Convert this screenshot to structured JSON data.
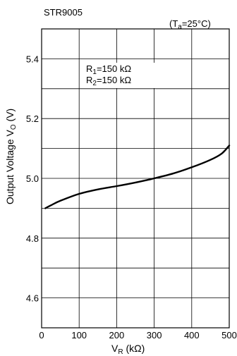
{
  "chart_data": {
    "type": "line",
    "title": "STR9005",
    "condition": {
      "prefix": "(T",
      "sub": "a",
      "suffix": "=25°C)"
    },
    "annotations": [
      {
        "parts": [
          "R",
          "1",
          "=150 kΩ"
        ]
      },
      {
        "parts": [
          "R",
          "2",
          "=150 kΩ"
        ]
      }
    ],
    "xlabel": {
      "main": "V",
      "sub": "R",
      "unit": " (kΩ)"
    },
    "ylabel": {
      "main": "Output Voltage V",
      "sub": "O",
      "unit": " (V)"
    },
    "xlim": [
      0,
      500
    ],
    "ylim": [
      4.5,
      5.5
    ],
    "xticks": [
      0,
      100,
      200,
      300,
      400,
      500
    ],
    "xtick_labels": [
      "0",
      "100",
      "200",
      "300",
      "400",
      "500"
    ],
    "yticks": [
      4.6,
      4.8,
      5.0,
      5.2,
      5.4
    ],
    "ytick_labels": [
      "4.6",
      "4.8",
      "5.0",
      "5.2",
      "5.4"
    ],
    "grid": true,
    "series": [
      {
        "x": [
          10,
          25,
          50,
          100,
          150,
          200,
          250,
          290,
          300,
          350,
          400,
          450,
          480,
          500
        ],
        "y": [
          4.9,
          4.91,
          4.925,
          4.948,
          4.963,
          4.974,
          4.986,
          4.997,
          5.0,
          5.016,
          5.037,
          5.062,
          5.083,
          5.11
        ]
      }
    ]
  }
}
